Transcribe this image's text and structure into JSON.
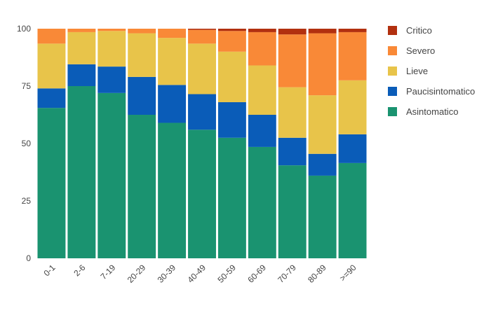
{
  "chart_data": {
    "type": "bar",
    "stacked": true,
    "categories": [
      "0-1",
      "2-6",
      "7-19",
      "20-29",
      "30-39",
      "40-49",
      "50-59",
      "60-69",
      "70-79",
      "80-89",
      ">=90"
    ],
    "series": [
      {
        "name": "Asintomatico",
        "color": "#1a9370",
        "values": [
          65.5,
          75.0,
          72.0,
          62.5,
          59.0,
          56.0,
          52.5,
          48.5,
          40.5,
          36.0,
          41.5
        ]
      },
      {
        "name": "Paucisintomatico",
        "color": "#0a5cb8",
        "values": [
          8.5,
          9.5,
          11.5,
          16.5,
          16.5,
          15.5,
          15.5,
          14.0,
          12.0,
          9.5,
          12.5
        ]
      },
      {
        "name": "Lieve",
        "color": "#e8c44a",
        "values": [
          19.5,
          14.0,
          15.5,
          19.0,
          20.5,
          22.0,
          22.0,
          21.5,
          22.0,
          25.5,
          23.5
        ]
      },
      {
        "name": "Severo",
        "color": "#f98937",
        "values": [
          6.5,
          1.5,
          1.0,
          2.0,
          4.0,
          6.0,
          9.0,
          14.5,
          23.0,
          27.0,
          21.0
        ]
      },
      {
        "name": "Critico",
        "color": "#b2300f",
        "values": [
          0.0,
          0.0,
          0.0,
          0.0,
          0.0,
          0.5,
          1.0,
          1.5,
          2.5,
          2.0,
          1.5
        ]
      }
    ],
    "legend_order": [
      "Critico",
      "Severo",
      "Lieve",
      "Paucisintomatico",
      "Asintomatico"
    ],
    "yticks": [
      0,
      25,
      50,
      75,
      100
    ],
    "ylim": [
      0,
      100
    ],
    "grid": false,
    "legend_position": "right"
  }
}
